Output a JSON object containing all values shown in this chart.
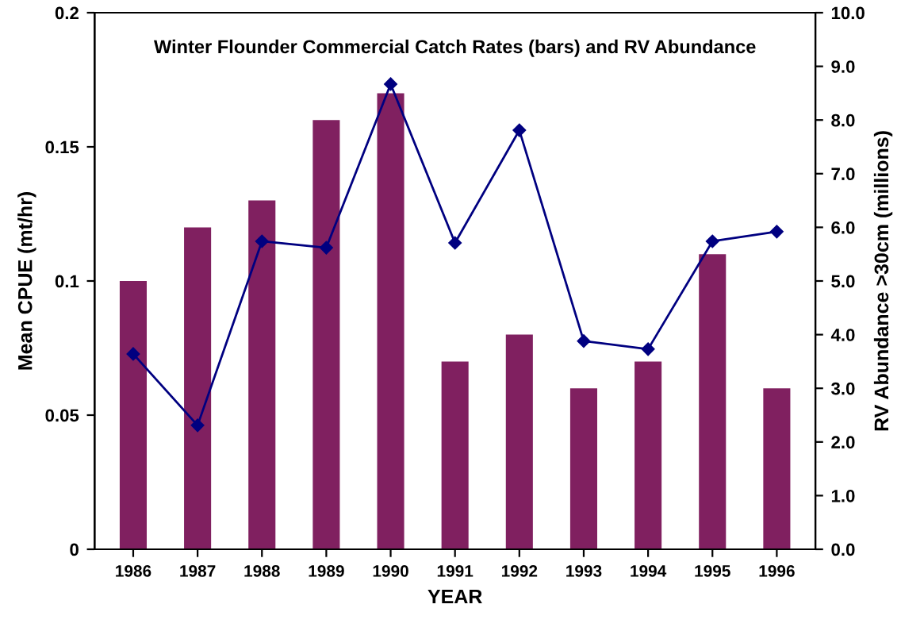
{
  "chart_data": {
    "type": "bar",
    "title": "Winter Flounder Commercial Catch Rates (bars) and RV Abundance",
    "xlabel": "YEAR",
    "ylabel": "Mean CPUE (mt/hr)",
    "y2label": "RV Abundance >30cm (millions)",
    "categories": [
      "1986",
      "1987",
      "1988",
      "1989",
      "1990",
      "1991",
      "1992",
      "1993",
      "1994",
      "1995",
      "1996"
    ],
    "series": [
      {
        "color": "#802060",
        "values": [
          0.1,
          0.12,
          0.13,
          0.16,
          0.17,
          0.07,
          0.08,
          0.06,
          0.07,
          0.11,
          0.06
        ]
      },
      {
        "type": "line",
        "axis": "y2",
        "color": "#000080",
        "marker": "diamond",
        "values": [
          3.64,
          2.31,
          5.74,
          5.62,
          8.67,
          5.71,
          7.81,
          3.88,
          3.73,
          5.74,
          5.92
        ]
      }
    ],
    "ylim": [
      0,
      0.2
    ],
    "yticks": [
      0,
      0.05,
      0.1,
      0.15,
      0.2
    ],
    "y2lim": [
      0,
      10
    ],
    "y2ticks": [
      {
        "value": 0,
        "label": "0.0"
      },
      {
        "value": 1,
        "label": "1.0"
      },
      {
        "value": 2,
        "label": "2.0"
      },
      {
        "value": 3,
        "label": "3.0"
      },
      {
        "value": 4,
        "label": "4.0"
      },
      {
        "value": 5,
        "label": "5.0"
      },
      {
        "value": 6,
        "label": "6.0"
      },
      {
        "value": 7,
        "label": "7.0"
      },
      {
        "value": 8,
        "label": "8.0"
      },
      {
        "value": 9,
        "label": "9.0"
      },
      {
        "value": 10,
        "label": "10.0"
      }
    ],
    "grid": false,
    "legend": false
  }
}
